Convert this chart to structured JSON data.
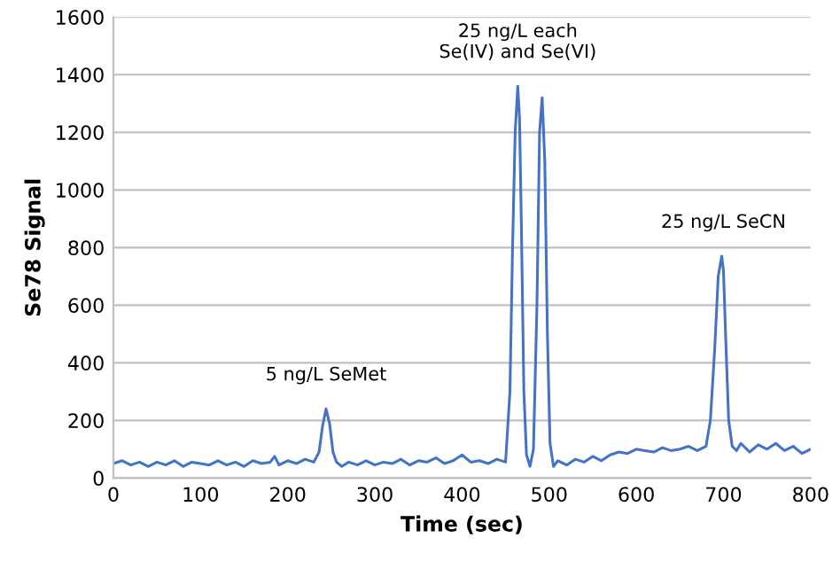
{
  "chart_data": {
    "type": "line",
    "xlabel": "Time (sec)",
    "ylabel": "Se78 Signal",
    "x": [
      0,
      10,
      20,
      30,
      40,
      50,
      60,
      70,
      80,
      90,
      100,
      110,
      120,
      130,
      140,
      150,
      160,
      170,
      180,
      185,
      190,
      200,
      210,
      220,
      230,
      236,
      240,
      244,
      248,
      252,
      256,
      262,
      270,
      280,
      290,
      300,
      310,
      320,
      330,
      340,
      350,
      360,
      370,
      380,
      390,
      400,
      410,
      420,
      430,
      440,
      450,
      455,
      458,
      461,
      464,
      466,
      468,
      471,
      474,
      478,
      482,
      486,
      489,
      492,
      495,
      498,
      501,
      505,
      510,
      520,
      530,
      540,
      550,
      560,
      570,
      580,
      590,
      600,
      610,
      620,
      630,
      640,
      650,
      660,
      670,
      680,
      685,
      690,
      694,
      698,
      700,
      703,
      706,
      710,
      715,
      720,
      730,
      740,
      750,
      760,
      770,
      780,
      790,
      800
    ],
    "series": [
      {
        "color": "#4472c4",
        "values": [
          50,
          60,
          45,
          55,
          40,
          55,
          45,
          60,
          40,
          55,
          50,
          45,
          60,
          45,
          55,
          40,
          60,
          50,
          55,
          75,
          45,
          60,
          50,
          65,
          55,
          90,
          180,
          240,
          190,
          90,
          55,
          40,
          55,
          45,
          60,
          45,
          55,
          50,
          65,
          45,
          60,
          55,
          70,
          50,
          60,
          80,
          55,
          60,
          50,
          65,
          55,
          300,
          800,
          1200,
          1360,
          1250,
          900,
          300,
          80,
          40,
          100,
          600,
          1200,
          1320,
          1100,
          500,
          120,
          40,
          60,
          45,
          65,
          55,
          75,
          60,
          80,
          90,
          85,
          100,
          95,
          90,
          105,
          95,
          100,
          110,
          95,
          110,
          200,
          450,
          700,
          770,
          720,
          450,
          200,
          110,
          95,
          120,
          90,
          115,
          100,
          120,
          95,
          110,
          85,
          100
        ]
      }
    ],
    "xlim": [
      0,
      800
    ],
    "xticks": [
      0,
      100,
      200,
      300,
      400,
      500,
      600,
      700,
      800
    ],
    "ylim": [
      0,
      1600
    ],
    "yticks": [
      0,
      200,
      400,
      600,
      800,
      1000,
      1200,
      1400,
      1600
    ],
    "grid": "y",
    "legend": false,
    "marker": "none",
    "line_style": "solid",
    "annotations": [
      {
        "text": "5 ng/L SeMet",
        "x": 244,
        "y": 240
      },
      {
        "text": "25 ng/L each\nSe(IV) and Se(VI)",
        "x": 464,
        "y": 1360
      },
      {
        "text": "25 ng/L SeCN",
        "x": 700,
        "y": 770
      }
    ]
  }
}
